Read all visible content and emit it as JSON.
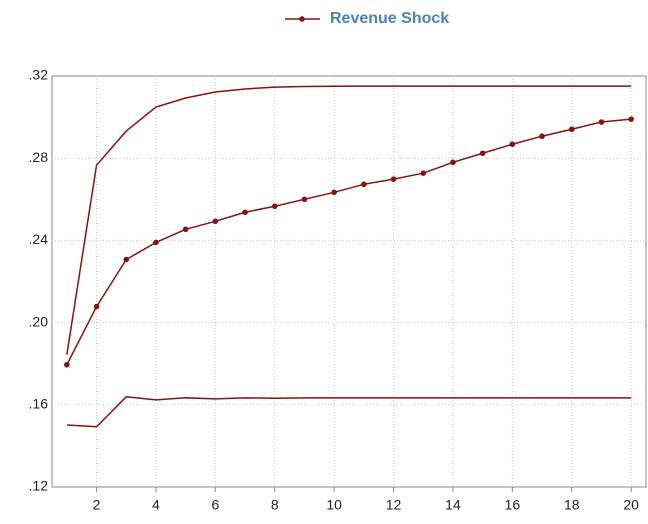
{
  "chart_data": {
    "type": "line",
    "x": [
      1,
      2,
      3,
      4,
      5,
      6,
      7,
      8,
      9,
      10,
      11,
      12,
      13,
      14,
      15,
      16,
      17,
      18,
      19,
      20
    ],
    "series": [
      {
        "name": "Revenue Shock",
        "color": "#7f1515",
        "markers": true,
        "values": [
          0.1795,
          0.2078,
          0.2307,
          0.239,
          0.2454,
          0.2493,
          0.2537,
          0.2566,
          0.26,
          0.2634,
          0.2673,
          0.2698,
          0.2727,
          0.278,
          0.2824,
          0.2868,
          0.2907,
          0.2941,
          0.2976,
          0.299
        ]
      },
      {
        "color": "#7f1515",
        "markers": false,
        "values": [
          0.1844,
          0.2766,
          0.2932,
          0.3049,
          0.3093,
          0.3122,
          0.3137,
          0.3146,
          0.3149,
          0.315,
          0.3151,
          0.3151,
          0.3151,
          0.3151,
          0.3151,
          0.3151,
          0.3151,
          0.3151,
          0.3151,
          0.3151
        ]
      },
      {
        "color": "#7f1515",
        "markers": false,
        "values": [
          0.1502,
          0.1493,
          0.1639,
          0.1624,
          0.1634,
          0.1629,
          0.1634,
          0.1632,
          0.1634,
          0.1634,
          0.1634,
          0.1634,
          0.1634,
          0.1634,
          0.1634,
          0.1634,
          0.1634,
          0.1634,
          0.1634,
          0.1634
        ]
      }
    ],
    "xlim": [
      0.5,
      20.5
    ],
    "xticks": [
      2,
      4,
      6,
      8,
      10,
      12,
      14,
      16,
      18,
      20
    ],
    "ylim": [
      0.12,
      0.32
    ],
    "yticks": [
      {
        "value": 0.12,
        "label": ".12"
      },
      {
        "value": 0.16,
        "label": ".16"
      },
      {
        "value": 0.2,
        "label": ".20"
      },
      {
        "value": 0.24,
        "label": ".24"
      },
      {
        "value": 0.28,
        "label": ".28"
      },
      {
        "value": 0.32,
        "label": ".32"
      }
    ],
    "grid": true,
    "legend": "top"
  }
}
